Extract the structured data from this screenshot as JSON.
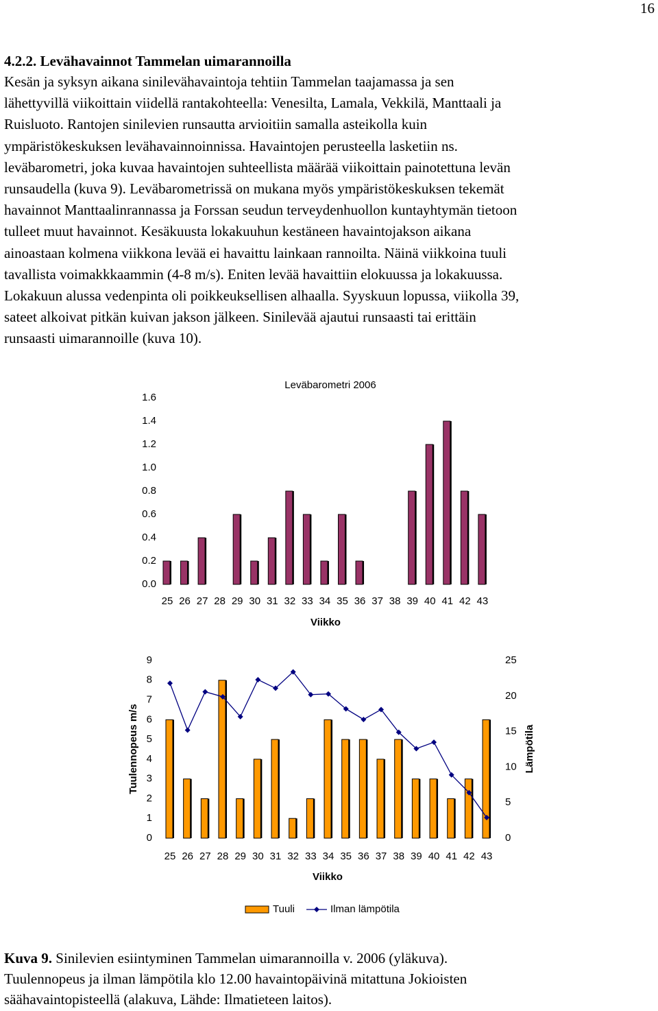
{
  "page_number": "16",
  "heading": "4.2.2. Levähavainnot Tammelan uimarannoilla",
  "paragraph_lines": [
    "Kesän ja syksyn aikana sinilevähavaintoja tehtiin Tammelan taajamassa ja sen",
    "lähettyvillä viikoittain viidellä rantakohteella: Venesilta, Lamala, Vekkilä, Manttaali ja",
    "Ruisluoto. Rantojen sinilevien runsautta arvioitiin samalla asteikolla kuin",
    "ympäristökeskuksen levähavainnoinnissa. Havaintojen perusteella lasketiin ns.",
    "leväbarometri, joka kuvaa havaintojen suhteellista määrää viikoittain painotettuna levän",
    "runsaudella (kuva 9). Leväbarometrissä on mukana myös ympäristökeskuksen tekemät",
    "havainnot Manttaalinrannassa ja Forssan seudun terveydenhuollon kuntayhtymän tietoon",
    "tulleet muut havainnot. Kesäkuusta lokakuuhun kestäneen havaintojakson aikana",
    "ainoastaan kolmena viikkona levää ei havaittu lainkaan rannoilta. Näinä viikkoina tuuli",
    "tavallista voimakkkaammin (4-8 m/s). Eniten levää havaittiin elokuussa ja lokakuussa.",
    "Lokakuun alussa vedenpinta oli poikkeuksellisen alhaalla. Syyskuun lopussa, viikolla 39,",
    "sateet alkoivat pitkän kuivan jakson jälkeen. Sinilevää ajautui runsaasti tai erittäin",
    "runsaasti uimarannoille (kuva 10)."
  ],
  "chart_data": [
    {
      "type": "bar",
      "title": "Leväbarometri 2006",
      "x_label": "Viikko",
      "categories": [
        "25",
        "26",
        "27",
        "28",
        "29",
        "30",
        "31",
        "32",
        "33",
        "34",
        "35",
        "36",
        "37",
        "38",
        "39",
        "40",
        "41",
        "42",
        "43"
      ],
      "values": [
        0.2,
        0.2,
        0.4,
        0,
        0.6,
        0.2,
        0.4,
        0.8,
        0.6,
        0.2,
        0.6,
        0.2,
        0,
        0,
        0.8,
        1.2,
        1.4,
        0.8,
        0.6
      ],
      "color": "#993366",
      "ylim": [
        0,
        1.6
      ],
      "yticks": [
        {
          "value": 0,
          "label": "0.0"
        },
        0.2,
        0.4,
        0.6,
        0.8,
        {
          "value": 1,
          "label": "1.0"
        },
        1.2,
        1.4,
        1.6
      ]
    },
    {
      "type": "combo",
      "x_label": "Viikko",
      "y_label": "Tuulennopeus m/s",
      "y2_label": "Lämpötila",
      "categories": [
        "25",
        "26",
        "27",
        "28",
        "29",
        "30",
        "31",
        "32",
        "33",
        "34",
        "35",
        "36",
        "37",
        "38",
        "39",
        "40",
        "41",
        "42",
        "43"
      ],
      "series": [
        {
          "name": "Tuuli",
          "type": "bar",
          "color": "#ff9900",
          "values": [
            6,
            3,
            2,
            8,
            2,
            4,
            5,
            1,
            2,
            6,
            5,
            5,
            4,
            5,
            3,
            3,
            2,
            3,
            6
          ]
        },
        {
          "name": "Ilman lämpötila",
          "type": "line",
          "axis": "y2",
          "color": "#000080",
          "values": [
            21.8,
            15.2,
            20.6,
            19.9,
            17.1,
            22.3,
            21.1,
            23.4,
            20.2,
            20.3,
            18.2,
            16.7,
            18.1,
            14.9,
            12.6,
            13.5,
            8.9,
            6.4,
            2.9
          ]
        }
      ],
      "ylim": [
        0,
        9
      ],
      "yticks": [
        0,
        1,
        2,
        3,
        4,
        5,
        6,
        7,
        8,
        9
      ],
      "y2lim": [
        0,
        25
      ],
      "y2ticks": [
        0,
        5,
        10,
        15,
        20,
        25
      ],
      "legend": "bottom"
    }
  ],
  "caption": {
    "label": "Kuva 9.",
    "lines": [
      " Sinilevien esiintyminen Tammelan uimarannoilla v. 2006 (yläkuva).",
      "Tuulennopeus ja ilman lämpötila klo 12.00 havaintopäivinä mitattuna Jokioisten",
      "säähavaintopisteellä (alakuva, Lähde: Ilmatieteen laitos)."
    ]
  }
}
